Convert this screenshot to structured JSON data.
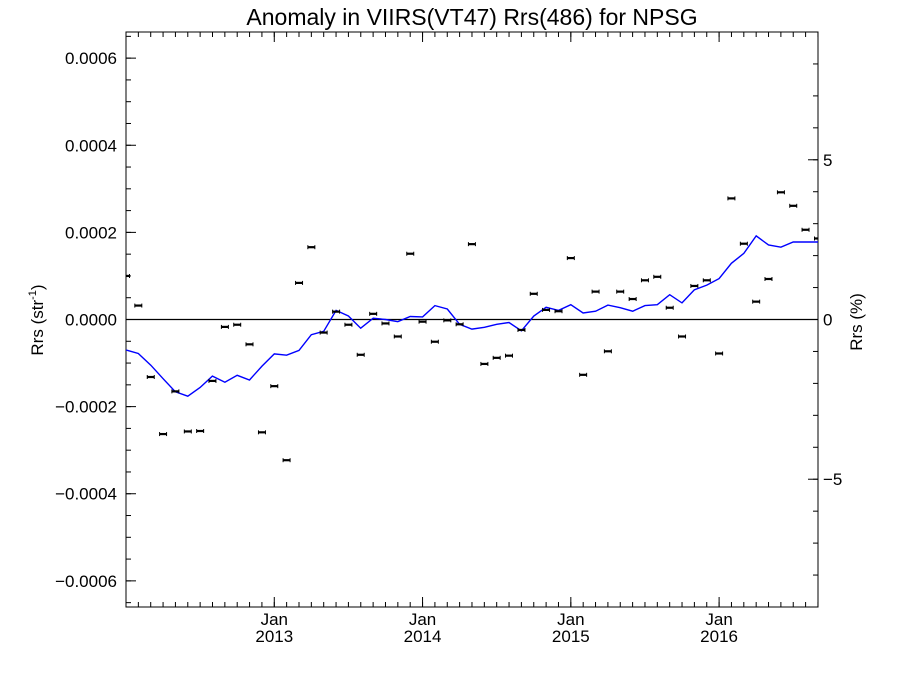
{
  "chart_data": {
    "type": "scatter",
    "title": "Anomaly in VIIRS(VT47) Rrs(486) for NPSG",
    "ylabel_left": {
      "base": "Rrs (str",
      "sup": "-1",
      "end": ")"
    },
    "ylabel_right": "Rrs (%)",
    "x_range": [
      2012.0,
      2016.667
    ],
    "y_range": [
      -0.00066,
      0.00066
    ],
    "y2_range": [
      -9.0,
      9.0
    ],
    "left_ticks": [
      {
        "value": 0.0006,
        "label": "0.0006"
      },
      {
        "value": 0.0004,
        "label": "0.0004"
      },
      {
        "value": 0.0002,
        "label": "0.0002"
      },
      {
        "value": 0.0,
        "label": "0.0000"
      },
      {
        "value": -0.0002,
        "label": "−0.0002"
      },
      {
        "value": -0.0004,
        "label": "−0.0004"
      },
      {
        "value": -0.0006,
        "label": "−0.0006"
      }
    ],
    "right_ticks": [
      {
        "value": 5,
        "label": "5"
      },
      {
        "value": 0,
        "label": "0"
      },
      {
        "value": -5,
        "label": "−5"
      }
    ],
    "x_ticks": [
      {
        "value": 2013.0,
        "line1": "Jan",
        "line2": "2013"
      },
      {
        "value": 2014.0,
        "line1": "Jan",
        "line2": "2014"
      },
      {
        "value": 2015.0,
        "line1": "Jan",
        "line2": "2015"
      },
      {
        "value": 2016.0,
        "line1": "Jan",
        "line2": "2016"
      }
    ],
    "zero_line": 0,
    "series": [
      {
        "kind": "points_with_errorbars",
        "color": "#000000",
        "x": [
          2012.0,
          2012.083,
          2012.167,
          2012.25,
          2012.333,
          2012.417,
          2012.5,
          2012.583,
          2012.667,
          2012.75,
          2012.833,
          2012.917,
          2013.0,
          2013.083,
          2013.167,
          2013.25,
          2013.333,
          2013.417,
          2013.5,
          2013.583,
          2013.667,
          2013.75,
          2013.833,
          2013.917,
          2014.0,
          2014.083,
          2014.167,
          2014.25,
          2014.333,
          2014.417,
          2014.5,
          2014.583,
          2014.667,
          2014.75,
          2014.833,
          2014.917,
          2015.0,
          2015.083,
          2015.167,
          2015.25,
          2015.333,
          2015.417,
          2015.5,
          2015.583,
          2015.667,
          2015.75,
          2015.833,
          2015.917,
          2016.0,
          2016.083,
          2016.167,
          2016.25,
          2016.333,
          2016.417,
          2016.5,
          2016.583,
          2016.667
        ],
        "y": [
          0.0001,
          3.2e-05,
          -0.000132,
          -0.000263,
          -0.000165,
          -0.000257,
          -0.000256,
          -0.000141,
          -1.7e-05,
          -1.2e-05,
          -5.7e-05,
          -0.000259,
          -0.000153,
          -0.000323,
          8.4e-05,
          0.000166,
          -3e-05,
          1.8e-05,
          -1.2e-05,
          -8.1e-05,
          1.3e-05,
          -9e-06,
          -3.9e-05,
          0.000151,
          -5e-06,
          -5.1e-05,
          -2e-06,
          -1.1e-05,
          0.000173,
          -0.000102,
          -8.8e-05,
          -8.3e-05,
          -2.4e-05,
          5.9e-05,
          2.2e-05,
          1.9e-05,
          0.000141,
          -0.000127,
          6.4e-05,
          -7.3e-05,
          6.4e-05,
          4.7e-05,
          9e-05,
          9.8e-05,
          2.7e-05,
          -3.9e-05,
          7.7e-05,
          9e-05,
          -7.8e-05,
          0.000278,
          0.000174,
          4.1e-05,
          9.3e-05,
          0.000292,
          0.000261,
          0.000206,
          0.000186
        ]
      },
      {
        "kind": "line",
        "color": "#0000ff",
        "x": [
          2012.0,
          2012.083,
          2012.167,
          2012.25,
          2012.333,
          2012.417,
          2012.5,
          2012.583,
          2012.667,
          2012.75,
          2012.833,
          2012.917,
          2013.0,
          2013.083,
          2013.167,
          2013.25,
          2013.333,
          2013.417,
          2013.5,
          2013.583,
          2013.667,
          2013.75,
          2013.833,
          2013.917,
          2014.0,
          2014.083,
          2014.167,
          2014.25,
          2014.333,
          2014.417,
          2014.5,
          2014.583,
          2014.667,
          2014.75,
          2014.833,
          2014.917,
          2015.0,
          2015.083,
          2015.167,
          2015.25,
          2015.333,
          2015.417,
          2015.5,
          2015.583,
          2015.667,
          2015.75,
          2015.833,
          2015.917,
          2016.0,
          2016.083,
          2016.167,
          2016.25,
          2016.333,
          2016.417,
          2016.5,
          2016.583,
          2016.667
        ],
        "y": [
          -7e-05,
          -7.8e-05,
          -0.000105,
          -0.000136,
          -0.000166,
          -0.000176,
          -0.000156,
          -0.00013,
          -0.000144,
          -0.000128,
          -0.000139,
          -0.000107,
          -7.9e-05,
          -8.2e-05,
          -7.1e-05,
          -3.5e-05,
          -2.7e-05,
          2.1e-05,
          8e-06,
          -2e-05,
          3e-06,
          0.0,
          -5e-06,
          7e-06,
          6e-06,
          3.2e-05,
          2.4e-05,
          -1.1e-05,
          -2.2e-05,
          -1.8e-05,
          -1.1e-05,
          -7e-06,
          -2.6e-05,
          8e-06,
          2.8e-05,
          2.1e-05,
          3.4e-05,
          1.5e-05,
          1.9e-05,
          3.3e-05,
          2.7e-05,
          1.9e-05,
          3.2e-05,
          3.4e-05,
          5.7e-05,
          3.8e-05,
          6.8e-05,
          7.9e-05,
          9.4e-05,
          0.000129,
          0.000152,
          0.000192,
          0.000171,
          0.000166,
          0.000178,
          0.000178,
          0.000178
        ]
      }
    ]
  }
}
